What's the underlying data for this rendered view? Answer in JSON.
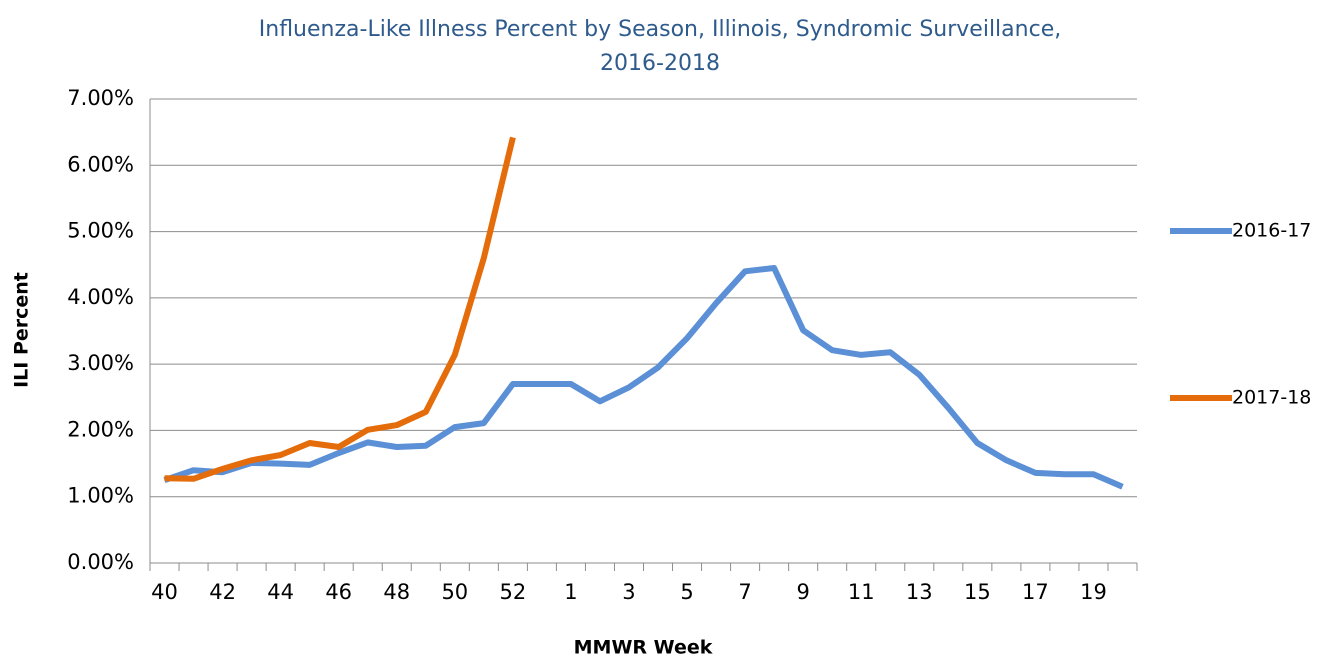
{
  "chart_data": {
    "type": "line",
    "title": "Influenza-Like Illness Percent by Season, Illinois, Syndromic Surveillance, 2016-2018",
    "x_label": "MMWR Week",
    "y_label": "ILI Percent",
    "categories": [
      40,
      null,
      42,
      null,
      44,
      null,
      46,
      null,
      48,
      null,
      50,
      null,
      52,
      null,
      1,
      null,
      3,
      null,
      5,
      null,
      7,
      null,
      9,
      null,
      11,
      null,
      13,
      null,
      15,
      null,
      17,
      null,
      19,
      null
    ],
    "series": [
      {
        "name": "2016-17",
        "color": "#5b8fd6",
        "values": [
          1.25,
          1.4,
          1.37,
          1.51,
          1.5,
          1.48,
          1.66,
          1.82,
          1.75,
          1.77,
          2.05,
          2.11,
          2.7,
          2.7,
          2.7,
          2.44,
          2.65,
          2.95,
          3.39,
          3.92,
          4.4,
          4.45,
          3.51,
          3.21,
          3.14,
          3.18,
          2.84,
          2.34,
          1.81,
          1.55,
          1.36,
          1.34,
          1.34,
          1.15
        ]
      },
      {
        "name": "2017-18",
        "color": "#e46c0a",
        "values": [
          1.28,
          1.27,
          1.42,
          1.55,
          1.63,
          1.81,
          1.75,
          2.01,
          2.08,
          2.28,
          3.14,
          4.6,
          6.42,
          null,
          null,
          null,
          null,
          null,
          null,
          null,
          null,
          null,
          null,
          null,
          null,
          null,
          null,
          null,
          null,
          null,
          null,
          null,
          null,
          null
        ]
      }
    ],
    "ylim": [
      0,
      7
    ],
    "yticks": [
      {
        "value": 0,
        "label": "0.00%"
      },
      {
        "value": 1,
        "label": "1.00%"
      },
      {
        "value": 2,
        "label": "2.00%"
      },
      {
        "value": 3,
        "label": "3.00%"
      },
      {
        "value": 4,
        "label": "4.00%"
      },
      {
        "value": 5,
        "label": "5.00%"
      },
      {
        "value": 6,
        "label": "6.00%"
      },
      {
        "value": 7,
        "label": "7.00%"
      }
    ],
    "grid": true,
    "legend": "right"
  }
}
